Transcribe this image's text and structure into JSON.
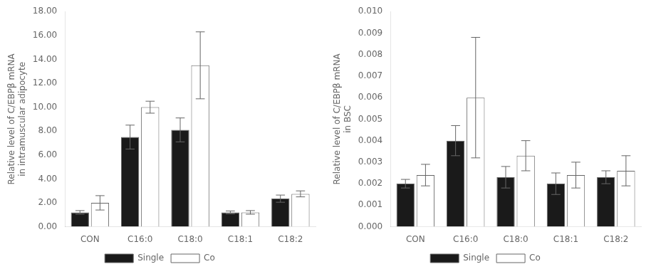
{
  "chart_data": [
    {
      "type": "bar",
      "categories": [
        "CON",
        "C16:0",
        "C18:0",
        "C18:1",
        "C18:2"
      ],
      "series": [
        {
          "name": "Single",
          "color": "#1a1a1a",
          "values": [
            1.2,
            7.5,
            8.1,
            1.2,
            2.35
          ],
          "errors": [
            0.15,
            1.0,
            1.0,
            0.12,
            0.3
          ]
        },
        {
          "name": "Co",
          "color": "#ffffff",
          "values": [
            2.0,
            10.0,
            13.5,
            1.2,
            2.75
          ],
          "errors": [
            0.6,
            0.5,
            2.8,
            0.15,
            0.25
          ]
        }
      ],
      "ylabel": "Relative level of C/EBPβ mRNA\nin intramuscular adipocyte",
      "ylim": [
        0,
        18.0
      ],
      "yticks": [
        {
          "value": 0.0,
          "label": "0.00"
        },
        {
          "value": 2.0,
          "label": "2.00"
        },
        {
          "value": 4.0,
          "label": "4.00"
        },
        {
          "value": 6.0,
          "label": "6.00"
        },
        {
          "value": 8.0,
          "label": "8.00"
        },
        {
          "value": 10.0,
          "label": "10.00"
        },
        {
          "value": 12.0,
          "label": "12.00"
        },
        {
          "value": 14.0,
          "label": "14.00"
        },
        {
          "value": 16.0,
          "label": "16.00"
        },
        {
          "value": 18.0,
          "label": "18.00"
        }
      ],
      "grid": false,
      "legend": "bottom"
    },
    {
      "type": "bar",
      "categories": [
        "CON",
        "C16:0",
        "C18:0",
        "C18:1",
        "C18:2"
      ],
      "series": [
        {
          "name": "Single",
          "color": "#1a1a1a",
          "values": [
            0.002,
            0.004,
            0.0023,
            0.002,
            0.0023
          ],
          "errors": [
            0.0002,
            0.0007,
            0.0005,
            0.0005,
            0.0003
          ]
        },
        {
          "name": "Co",
          "color": "#ffffff",
          "values": [
            0.0024,
            0.006,
            0.0033,
            0.0024,
            0.0026
          ],
          "errors": [
            0.0005,
            0.0028,
            0.0007,
            0.0006,
            0.0007
          ]
        }
      ],
      "ylabel": "Relative level of C/EBPβ mRNA\nin BSC",
      "ylim": [
        0,
        0.01
      ],
      "yticks": [
        {
          "value": 0,
          "label": "0.000"
        },
        0.001,
        0.002,
        0.003,
        0.004,
        0.005,
        0.006,
        0.007,
        0.008,
        0.009,
        {
          "value": 0.01,
          "label": "0.010"
        }
      ],
      "grid": false,
      "legend": "bottom"
    }
  ]
}
